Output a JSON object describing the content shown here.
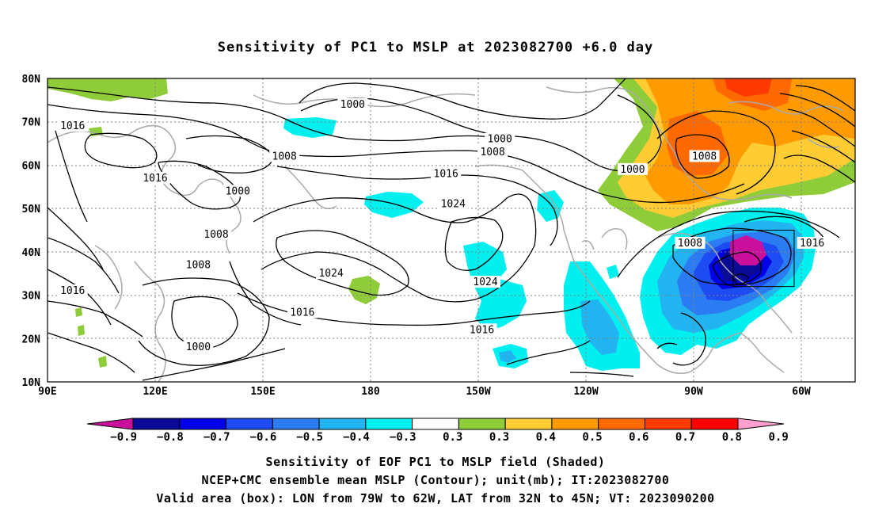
{
  "title": "Sensitivity of PC1 to MSLP at 2023082700 +6.0 day",
  "lat_labels": [
    "80N",
    "70N",
    "60N",
    "50N",
    "40N",
    "30N",
    "20N",
    "10N"
  ],
  "lon_labels": [
    "90E",
    "120E",
    "150E",
    "180",
    "150W",
    "120W",
    "90W",
    "60W"
  ],
  "contour_labels": [
    {
      "text": "1000",
      "lon": 175,
      "lat": 74
    },
    {
      "text": "1016",
      "lon": 97,
      "lat": 69
    },
    {
      "text": "1008",
      "lon": 156,
      "lat": 62
    },
    {
      "text": "1016",
      "lon": 120,
      "lat": 57
    },
    {
      "text": "1000",
      "lon": 143,
      "lat": 54
    },
    {
      "text": "1000",
      "lon": -144,
      "lat": 66
    },
    {
      "text": "1008",
      "lon": -146,
      "lat": 63
    },
    {
      "text": "1016",
      "lon": -159,
      "lat": 58
    },
    {
      "text": "1024",
      "lon": -157,
      "lat": 51
    },
    {
      "text": "1000",
      "lon": -107,
      "lat": 59
    },
    {
      "text": "1008",
      "lon": -87,
      "lat": 62
    },
    {
      "text": "1008",
      "lon": -91,
      "lat": 42
    },
    {
      "text": "1016",
      "lon": -57,
      "lat": 42
    },
    {
      "text": "1008",
      "lon": 137,
      "lat": 44
    },
    {
      "text": "1008",
      "lon": 132,
      "lat": 37
    },
    {
      "text": "1024",
      "lon": 169,
      "lat": 35
    },
    {
      "text": "1024",
      "lon": -148,
      "lat": 33
    },
    {
      "text": "1016",
      "lon": 97,
      "lat": 31
    },
    {
      "text": "1016",
      "lon": 161,
      "lat": 26
    },
    {
      "text": "1016",
      "lon": -149,
      "lat": 22
    },
    {
      "text": "1000",
      "lon": 132,
      "lat": 18
    }
  ],
  "box": {
    "lon_min": -79,
    "lon_max": -62,
    "lat_min": 32,
    "lat_max": 45
  },
  "colorbar": {
    "colors": [
      "#c90f9c",
      "#0a0a96",
      "#0000e6",
      "#1c4cf2",
      "#2b7cf2",
      "#21b4f0",
      "#00f0f0",
      "#ffffff",
      "#8fcc3a",
      "#ffcc33",
      "#ff9a00",
      "#ff6a00",
      "#ff3a00",
      "#ff0000",
      "#ff9fcf"
    ],
    "labels": [
      "−0.9",
      "−0.8",
      "−0.7",
      "−0.6",
      "−0.5",
      "−0.4",
      "−0.3",
      "0.3",
      "0.3",
      "0.4",
      "0.5",
      "0.6",
      "0.7",
      "0.8",
      "0.9"
    ]
  },
  "caption": {
    "line1": "Sensitivity of EOF PC1 to MSLP field (Shaded)",
    "line2": "NCEP+CMC ensemble mean MSLP (Contour); unit(mb); IT:2023082700",
    "line3": "Valid area (box): LON from 79W to 62W, LAT from 32N to 45N; VT: 2023090200"
  }
}
